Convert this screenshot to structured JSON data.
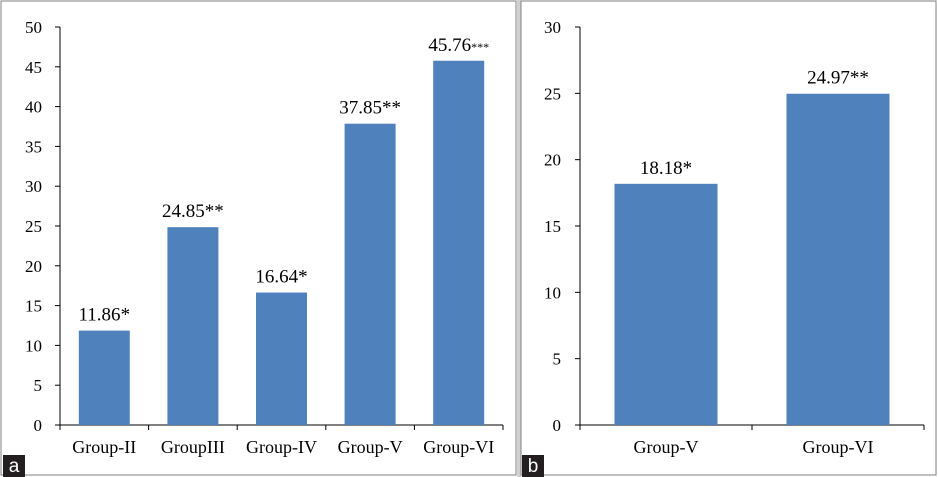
{
  "colors": {
    "bar": "#4f81bd",
    "frame": "#7f7f7f",
    "divider": "#d0d0d0",
    "tag_bg": "#231f20"
  },
  "chart_data": [
    {
      "type": "bar",
      "panel": "a",
      "categories": [
        "Group-II",
        "GroupIII",
        "Group-IV",
        "Group-V",
        "Group-VI"
      ],
      "values": [
        11.86,
        24.85,
        16.64,
        37.85,
        45.76
      ],
      "data_labels": [
        {
          "value": "11.86",
          "mark": "*"
        },
        {
          "value": "24.85",
          "mark": "**"
        },
        {
          "value": "16.64",
          "mark": "*"
        },
        {
          "value": "37.85",
          "mark": "**"
        },
        {
          "value": "45.76",
          "mark": "***"
        }
      ],
      "ylim": [
        0,
        50
      ],
      "yticks": [
        0,
        5,
        10,
        15,
        20,
        25,
        30,
        35,
        40,
        45,
        50
      ],
      "grid": false,
      "title": "",
      "xlabel": "",
      "ylabel": ""
    },
    {
      "type": "bar",
      "panel": "b",
      "categories": [
        "Group-V",
        "Group-VI"
      ],
      "values": [
        18.18,
        24.97
      ],
      "data_labels": [
        {
          "value": "18.18",
          "mark": "*"
        },
        {
          "value": "24.97",
          "mark": "**"
        }
      ],
      "ylim": [
        0,
        30
      ],
      "yticks": [
        0,
        5,
        10,
        15,
        20,
        25,
        30
      ],
      "grid": false,
      "title": "",
      "xlabel": "",
      "ylabel": ""
    }
  ]
}
